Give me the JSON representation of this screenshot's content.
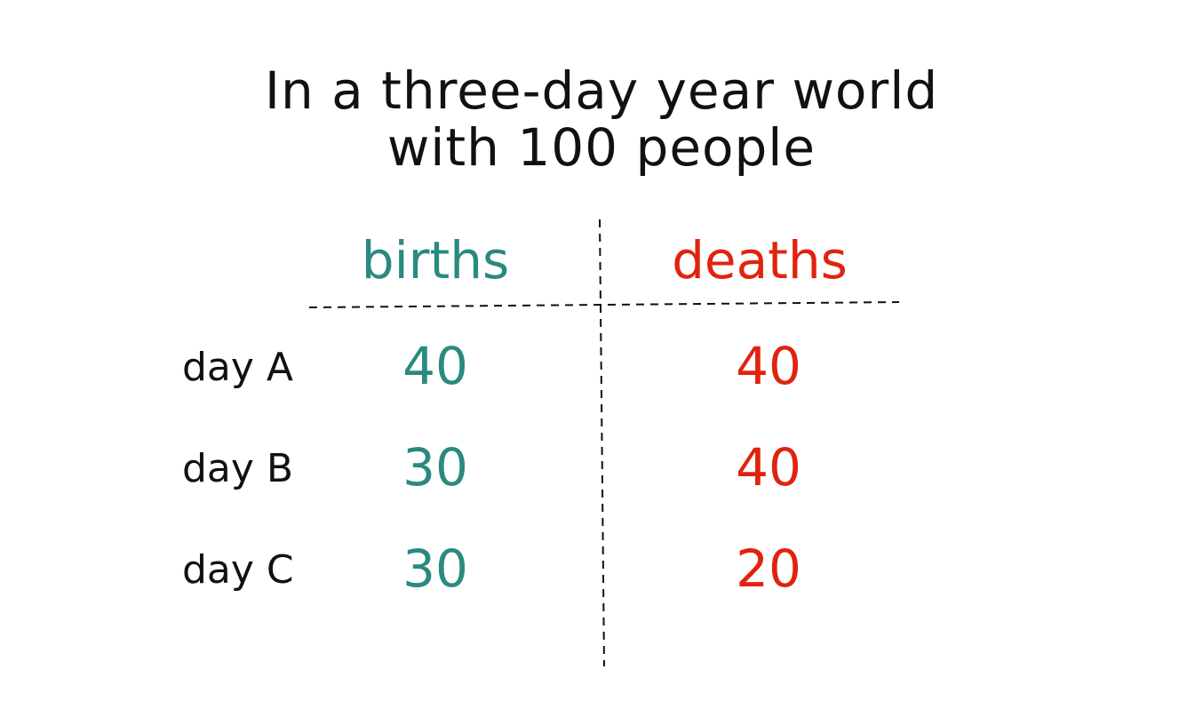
{
  "title": {
    "line1": "In a three-day year world",
    "line2": "with 100 people"
  },
  "columns": {
    "births": "births",
    "deaths": "deaths"
  },
  "rows": [
    {
      "label": "day A",
      "births": "40",
      "deaths": "40"
    },
    {
      "label": "day B",
      "births": "30",
      "deaths": "40"
    },
    {
      "label": "day C",
      "births": "30",
      "deaths": "20"
    }
  ],
  "colors": {
    "births": "#2a8a7f",
    "deaths": "#e0230f",
    "text": "#111111"
  }
}
